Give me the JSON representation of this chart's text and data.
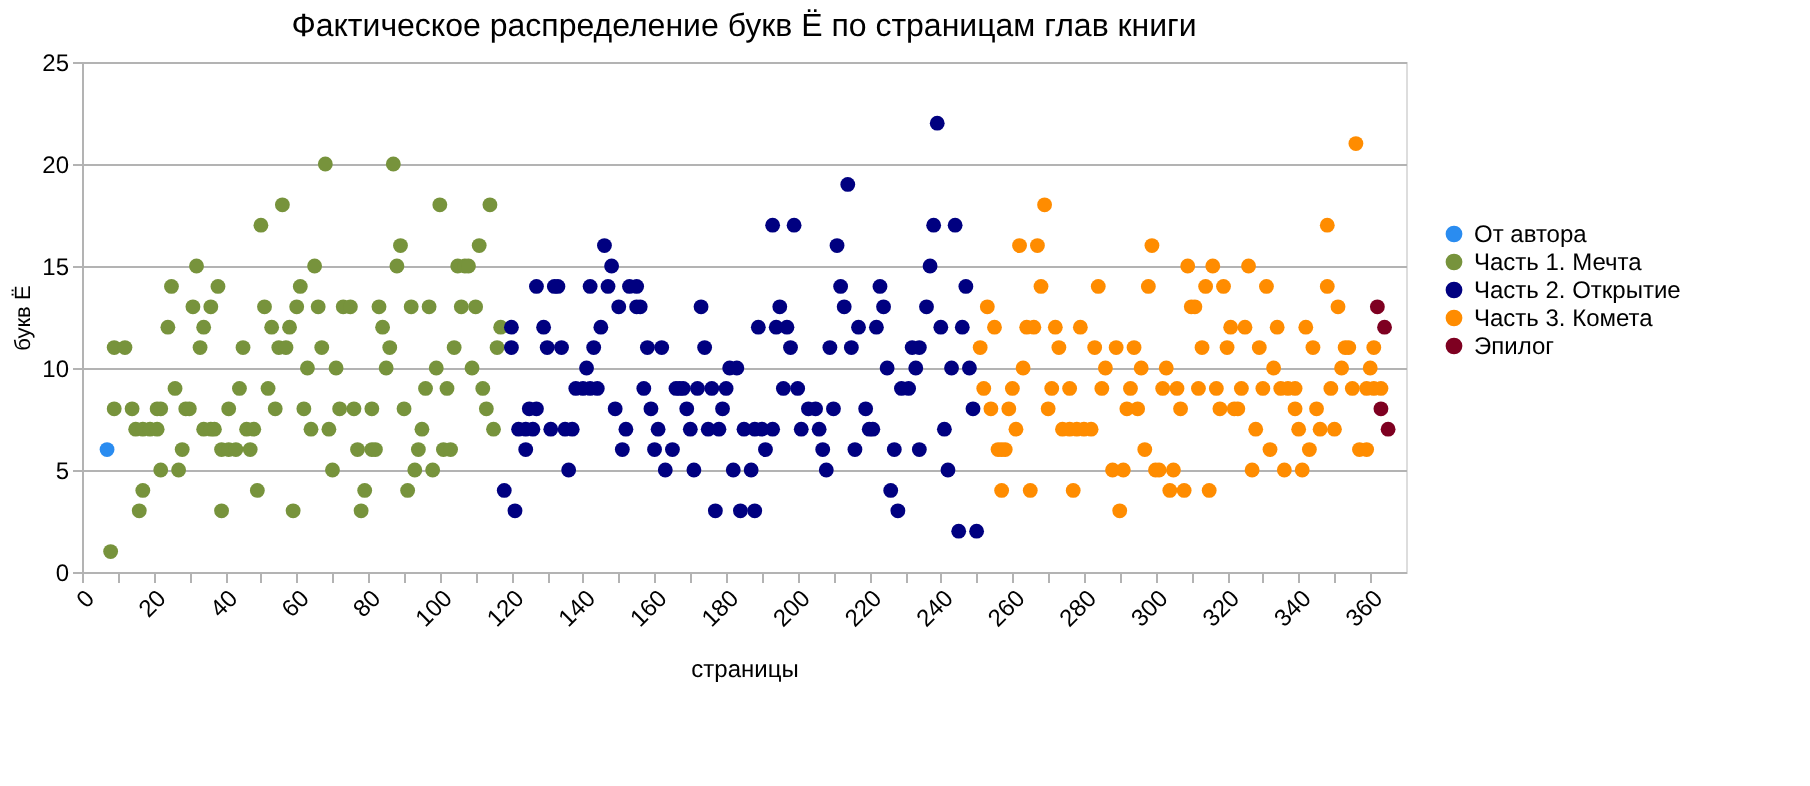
{
  "chart_data": {
    "type": "scatter",
    "title": "Фактическое распределение букв Ё по страницам глав книги",
    "xlabel": "страницы",
    "ylabel": "букв Ё",
    "xlim": [
      0,
      370
    ],
    "xticks": [
      0,
      {
        "value": 10,
        "label": null
      },
      20,
      {
        "value": 30,
        "label": null
      },
      40,
      {
        "value": 50,
        "label": null
      },
      60,
      {
        "value": 70,
        "label": null
      },
      80,
      {
        "value": 90,
        "label": null
      },
      100,
      {
        "value": 110,
        "label": null
      },
      120,
      {
        "value": 130,
        "label": null
      },
      140,
      {
        "value": 150,
        "label": null
      },
      160,
      {
        "value": 170,
        "label": null
      },
      180,
      {
        "value": 190,
        "label": null
      },
      200,
      {
        "value": 210,
        "label": null
      },
      220,
      {
        "value": 230,
        "label": null
      },
      240,
      {
        "value": 250,
        "label": null
      },
      260,
      {
        "value": 270,
        "label": null
      },
      280,
      {
        "value": 290,
        "label": null
      },
      300,
      {
        "value": 310,
        "label": null
      },
      320,
      {
        "value": 330,
        "label": null
      },
      340,
      {
        "value": 350,
        "label": null
      },
      360
    ],
    "ylim": [
      0,
      25
    ],
    "yticks": [
      0,
      5,
      10,
      15,
      20,
      25
    ],
    "grid": "y",
    "legend": "right",
    "marker": "circle",
    "series": [
      {
        "name": "От автора",
        "color": "#2a8cf0",
        "x": [
          7
        ],
        "values": [
          6
        ]
      },
      {
        "name": "Часть 1. Мечта",
        "color": "#77933c",
        "x": [
          8,
          9,
          9,
          12,
          14,
          15,
          16,
          17,
          17,
          19,
          21,
          22,
          21,
          22,
          24,
          25,
          26,
          27,
          28,
          29,
          30,
          31,
          32,
          33,
          34,
          34,
          36,
          37,
          36,
          38,
          39,
          39,
          41,
          43,
          41,
          44,
          45,
          46,
          47,
          48,
          49,
          50,
          51,
          52,
          53,
          54,
          55,
          56,
          57,
          58,
          59,
          60,
          61,
          62,
          63,
          64,
          65,
          66,
          67,
          68,
          69,
          70,
          71,
          72,
          73,
          75,
          76,
          77,
          78,
          79,
          81,
          81,
          82,
          83,
          84,
          85,
          86,
          87,
          88,
          89,
          90,
          91,
          92,
          93,
          94,
          95,
          96,
          97,
          98,
          99,
          100,
          101,
          103,
          102,
          104,
          105,
          107,
          108,
          106,
          109,
          110,
          111,
          112,
          113,
          114,
          115,
          116,
          117
        ],
        "values": [
          1,
          8,
          11,
          11,
          8,
          7,
          3,
          4,
          7,
          7,
          7,
          5,
          8,
          8,
          12,
          14,
          9,
          5,
          6,
          8,
          8,
          13,
          15,
          11,
          12,
          7,
          7,
          7,
          13,
          14,
          3,
          6,
          6,
          6,
          8,
          9,
          11,
          7,
          6,
          7,
          4,
          17,
          13,
          9,
          12,
          8,
          11,
          18,
          11,
          12,
          3,
          13,
          14,
          8,
          10,
          7,
          15,
          13,
          11,
          20,
          7,
          5,
          10,
          8,
          13,
          13,
          8,
          6,
          3,
          4,
          8,
          6,
          6,
          13,
          12,
          10,
          11,
          20,
          15,
          16,
          8,
          4,
          13,
          5,
          6,
          7,
          9,
          13,
          5,
          10,
          18,
          6,
          6,
          9,
          11,
          15,
          15,
          15,
          13,
          10,
          13,
          16,
          9,
          8,
          18,
          7,
          11,
          12
        ]
      },
      {
        "name": "Часть 2. Открытие",
        "color": "#000080",
        "x": [
          118,
          120,
          120,
          121,
          122,
          124,
          126,
          124,
          125,
          127,
          127,
          129,
          130,
          131,
          132,
          133,
          134,
          135,
          137,
          136,
          138,
          140,
          142,
          144,
          141,
          142,
          143,
          145,
          146,
          148,
          147,
          149,
          150,
          151,
          152,
          153,
          155,
          155,
          156,
          157,
          158,
          159,
          160,
          165,
          161,
          162,
          163,
          166,
          167,
          168,
          169,
          170,
          171,
          172,
          173,
          174,
          175,
          178,
          176,
          177,
          179,
          180,
          181,
          183,
          182,
          187,
          184,
          188,
          185,
          188,
          190,
          193,
          189,
          191,
          193,
          194,
          195,
          196,
          197,
          198,
          199,
          200,
          201,
          203,
          205,
          206,
          207,
          208,
          209,
          210,
          211,
          212,
          213,
          214,
          215,
          216,
          217,
          222,
          219,
          220,
          221,
          223,
          224,
          225,
          226,
          227,
          228,
          229,
          231,
          232,
          233,
          234,
          234,
          236,
          237,
          238,
          239,
          240,
          241,
          242,
          243,
          244,
          245,
          246,
          247,
          248,
          249,
          250
        ],
        "values": [
          4,
          12,
          11,
          3,
          7,
          7,
          7,
          6,
          8,
          8,
          14,
          12,
          11,
          7,
          14,
          14,
          11,
          7,
          7,
          5,
          9,
          9,
          9,
          9,
          10,
          14,
          11,
          12,
          16,
          15,
          14,
          8,
          13,
          6,
          7,
          14,
          14,
          13,
          13,
          9,
          11,
          8,
          6,
          6,
          7,
          11,
          5,
          9,
          9,
          9,
          8,
          7,
          5,
          9,
          13,
          11,
          7,
          7,
          9,
          3,
          8,
          9,
          10,
          10,
          5,
          5,
          3,
          3,
          7,
          7,
          7,
          7,
          12,
          6,
          17,
          12,
          13,
          9,
          12,
          11,
          17,
          9,
          7,
          8,
          8,
          7,
          6,
          5,
          11,
          8,
          16,
          14,
          13,
          19,
          11,
          6,
          12,
          12,
          8,
          7,
          7,
          14,
          13,
          10,
          4,
          6,
          3,
          9,
          9,
          11,
          10,
          11,
          6,
          13,
          15,
          17,
          22,
          12,
          7,
          5,
          10,
          17,
          2,
          12,
          14,
          10,
          8,
          2
        ]
      },
      {
        "name": "Часть 3. Комета",
        "color": "#ff8c00",
        "x": [
          251,
          252,
          253,
          254,
          255,
          256,
          257,
          258,
          257,
          259,
          260,
          261,
          262,
          263,
          264,
          266,
          265,
          267,
          268,
          269,
          270,
          271,
          272,
          273,
          274,
          276,
          278,
          280,
          282,
          276,
          277,
          279,
          283,
          284,
          285,
          286,
          288,
          289,
          290,
          291,
          292,
          293,
          294,
          295,
          296,
          297,
          298,
          299,
          300,
          301,
          305,
          302,
          306,
          303,
          304,
          308,
          315,
          307,
          309,
          310,
          311,
          312,
          313,
          314,
          316,
          317,
          318,
          319,
          320,
          321,
          322,
          323,
          324,
          325,
          326,
          327,
          328,
          329,
          330,
          331,
          332,
          333,
          334,
          335,
          337,
          339,
          336,
          339,
          340,
          341,
          342,
          343,
          344,
          345,
          346,
          348,
          348,
          349,
          350,
          351,
          352,
          353,
          354,
          355,
          356,
          357,
          359,
          359,
          361,
          363,
          360,
          361
        ],
        "values": [
          11,
          9,
          13,
          8,
          12,
          6,
          6,
          6,
          4,
          8,
          9,
          7,
          16,
          10,
          12,
          12,
          4,
          16,
          14,
          18,
          8,
          9,
          12,
          11,
          7,
          7,
          7,
          7,
          7,
          9,
          4,
          12,
          11,
          14,
          9,
          10,
          5,
          11,
          3,
          5,
          8,
          9,
          11,
          8,
          10,
          6,
          14,
          16,
          5,
          5,
          5,
          9,
          9,
          10,
          4,
          4,
          4,
          8,
          15,
          13,
          13,
          9,
          11,
          14,
          15,
          9,
          8,
          14,
          11,
          12,
          8,
          8,
          9,
          12,
          15,
          5,
          7,
          11,
          9,
          14,
          6,
          10,
          12,
          9,
          9,
          9,
          5,
          8,
          7,
          5,
          12,
          6,
          11,
          8,
          7,
          17,
          14,
          9,
          7,
          13,
          10,
          11,
          11,
          9,
          21,
          6,
          6,
          9,
          9,
          9,
          10,
          11
        ]
      },
      {
        "name": "Эпилог",
        "color": "#7e0021",
        "x": [
          362,
          364,
          363,
          365
        ],
        "values": [
          13,
          12,
          8,
          7
        ]
      }
    ]
  }
}
